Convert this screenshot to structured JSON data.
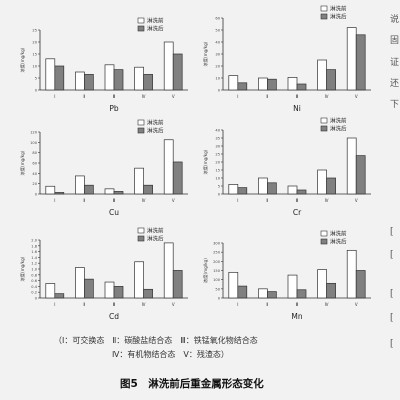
{
  "figure": {
    "legend_line1": "（Ⅰ：可交换态　Ⅱ：碳酸盐结合态　Ⅲ：铁锰氧化物结合态",
    "legend_line2": "Ⅳ：有机物结合态　Ⅴ：残渣态）",
    "caption": "图5　淋洗前后重金属形态变化"
  },
  "right_margin_fragments": [
    "说",
    "固",
    "证",
    "还",
    "下",
    "[",
    "[",
    "[",
    "[",
    "["
  ],
  "chart_data": [
    {
      "type": "bar",
      "title": "Pb",
      "ylabel": "浓度(mg/kg)",
      "categories": [
        "Ⅰ",
        "Ⅱ",
        "Ⅲ",
        "Ⅳ",
        "Ⅴ"
      ],
      "series": [
        {
          "name": "淋洗前",
          "values": [
            13.0,
            7.5,
            10.5,
            9.5,
            20.0
          ]
        },
        {
          "name": "淋洗后",
          "values": [
            10.0,
            6.5,
            8.5,
            6.5,
            15.0
          ]
        }
      ],
      "ylim": [
        0,
        25
      ],
      "yticks": [
        "0",
        "5",
        "10",
        "15",
        "20",
        "25"
      ],
      "legend_position": "top-right"
    },
    {
      "type": "bar",
      "title": "Ni",
      "ylabel": "浓度(mg/kg)",
      "categories": [
        "Ⅰ",
        "Ⅱ",
        "Ⅲ",
        "Ⅳ",
        "Ⅴ"
      ],
      "series": [
        {
          "name": "淋洗前",
          "values": [
            12.0,
            10.0,
            10.5,
            25.0,
            52.0
          ]
        },
        {
          "name": "淋洗后",
          "values": [
            6.0,
            9.0,
            5.0,
            17.0,
            46.0
          ]
        }
      ],
      "ylim": [
        0,
        60
      ],
      "yticks": [
        "0",
        "10",
        "20",
        "30",
        "40",
        "50",
        "60"
      ],
      "legend_position": "top-right"
    },
    {
      "type": "bar",
      "title": "Cu",
      "ylabel": "浓度(mg/kg)",
      "categories": [
        "Ⅰ",
        "Ⅱ",
        "Ⅲ",
        "Ⅳ",
        "Ⅴ"
      ],
      "series": [
        {
          "name": "淋洗前",
          "values": [
            15,
            35,
            10,
            50,
            105
          ]
        },
        {
          "name": "淋洗后",
          "values": [
            3,
            17,
            5,
            17,
            62
          ]
        }
      ],
      "ylim": [
        0,
        120
      ],
      "yticks": [
        "0",
        "20",
        "40",
        "60",
        "80",
        "100",
        "120"
      ],
      "legend_position": "top-right"
    },
    {
      "type": "bar",
      "title": "Cr",
      "ylabel": "浓度(mg/kg)",
      "categories": [
        "Ⅰ",
        "Ⅱ",
        "Ⅲ",
        "Ⅳ",
        "Ⅴ"
      ],
      "series": [
        {
          "name": "淋洗前",
          "values": [
            6.0,
            10.0,
            5.0,
            15.0,
            35.0
          ]
        },
        {
          "name": "淋洗后",
          "values": [
            4.0,
            7.0,
            2.5,
            10.0,
            24.0
          ]
        }
      ],
      "ylim": [
        0,
        40
      ],
      "yticks": [
        "0",
        "5",
        "10",
        "15",
        "20",
        "25",
        "30",
        "35",
        "40"
      ],
      "legend_position": "top-right"
    },
    {
      "type": "bar",
      "title": "Cd",
      "ylabel": "浓度(mg/kg)",
      "categories": [
        "Ⅰ",
        "Ⅱ",
        "Ⅲ",
        "Ⅳ",
        "Ⅴ"
      ],
      "series": [
        {
          "name": "淋洗前",
          "values": [
            0.5,
            1.05,
            0.55,
            1.25,
            1.9
          ]
        },
        {
          "name": "淋洗后",
          "values": [
            0.15,
            0.65,
            0.4,
            0.3,
            0.95
          ]
        }
      ],
      "ylim": [
        0,
        2.0
      ],
      "yticks": [
        "0",
        "0.2",
        "0.4",
        "0.6",
        "0.8",
        "1.0",
        "1.2",
        "1.4",
        "1.6",
        "1.8",
        "2.0"
      ],
      "legend_position": "top-right"
    },
    {
      "type": "bar",
      "title": "Mn",
      "ylabel": "浓度(mg/kg)",
      "categories": [
        "Ⅰ",
        "Ⅱ",
        "Ⅲ",
        "Ⅳ",
        "Ⅴ"
      ],
      "series": [
        {
          "name": "淋洗前",
          "values": [
            140,
            50,
            125,
            155,
            260
          ]
        },
        {
          "name": "淋洗后",
          "values": [
            65,
            35,
            45,
            80,
            150
          ]
        }
      ],
      "ylim": [
        0,
        300
      ],
      "yticks": [
        "0",
        "50",
        "100",
        "150",
        "200",
        "250",
        "300"
      ],
      "legend_position": "top-right"
    }
  ]
}
